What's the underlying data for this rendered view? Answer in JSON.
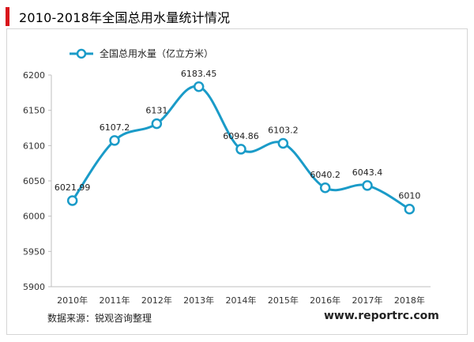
{
  "title": "2010-2018年全国总用水量统计情况",
  "source": "数据来源：锐观咨询整理",
  "website": "www.reportrc.com",
  "colors": {
    "accent": "#d9151b",
    "series": "#1a9bc8"
  },
  "chart_data": {
    "type": "line",
    "categories": [
      "2010年",
      "2011年",
      "2012年",
      "2013年",
      "2014年",
      "2015年",
      "2016年",
      "2017年",
      "2018年"
    ],
    "series": [
      {
        "name": "全国总用水量（亿立方米）",
        "values": [
          6021.99,
          6107.2,
          6131,
          6183.45,
          6094.86,
          6103.2,
          6040.2,
          6043.4,
          6010
        ],
        "labels": [
          "6021.99",
          "6107.2",
          "6131",
          "6183.45",
          "6094.86",
          "6103.2",
          "6040.2",
          "6043.4",
          "6010"
        ]
      }
    ],
    "ylim": [
      5900,
      6200
    ],
    "yticks": [
      5900,
      5950,
      6000,
      6050,
      6100,
      6150,
      6200
    ],
    "grid": false,
    "legend": "top-left"
  }
}
